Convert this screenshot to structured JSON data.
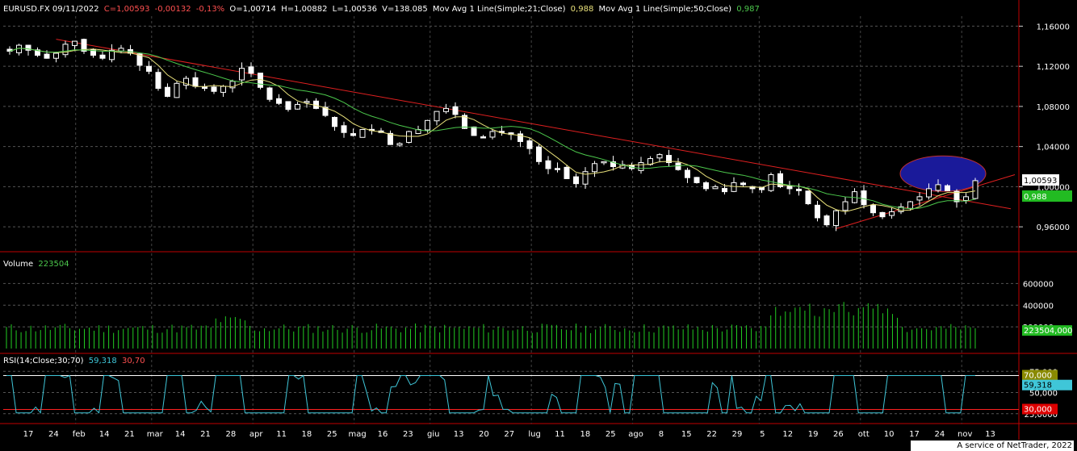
{
  "header": {
    "symbol_date": "EURUSD.FX 09/11/2022",
    "close": "C=1,00593",
    "change": "-0,00132",
    "change_pct": "-0,13%",
    "open": "O=1,00714",
    "high": "H=1,00882",
    "low": "L=1,00536",
    "volume": "V=138.085",
    "ma21_label": "Mov Avg 1 Line(Simple;21;Close)",
    "ma21_value": "0,988",
    "ma50_label": "Mov Avg 1 Line(Simple;50;Close)",
    "ma50_value": "0,987"
  },
  "volume_panel": {
    "title": "Volume",
    "value": "223504"
  },
  "rsi_panel": {
    "title": "RSI(14;Close;30;70)",
    "value": "59,318",
    "level_low": "30,70"
  },
  "footer": {
    "credit": "A service of NetTrader, 2022"
  },
  "colors": {
    "background": "#000000",
    "candle": "#ffffff",
    "ma21": "#e8e07a",
    "ma50": "#4cc84c",
    "trendline": "#e02020",
    "volume_bar": "#22cc22",
    "rsi_line": "#3fc6d8",
    "ellipse": "#1a1a9a"
  },
  "chart_data": [
    {
      "type": "candlestick",
      "symbol": "EURUSD.FX",
      "y_ticks": [
        "1,16000",
        "1,12000",
        "1,08000",
        "1,04000",
        "1,00000",
        "0,96000"
      ],
      "ylim": [
        0.94,
        1.17
      ],
      "x_ticks": [
        "17",
        "24",
        "feb",
        "14",
        "21",
        "mar",
        "14",
        "21",
        "28",
        "apr",
        "11",
        "18",
        "25",
        "mag",
        "16",
        "23",
        "giu",
        "13",
        "20",
        "27",
        "lug",
        "11",
        "18",
        "25",
        "ago",
        "8",
        "15",
        "22",
        "29",
        "5",
        "12",
        "19",
        "26",
        "ott",
        "10",
        "17",
        "24",
        "nov",
        "13"
      ],
      "close_series": [
        1.135,
        1.141,
        1.136,
        1.131,
        1.128,
        1.133,
        1.142,
        1.145,
        1.135,
        1.131,
        1.128,
        1.136,
        1.138,
        1.133,
        1.121,
        1.115,
        1.098,
        1.09,
        1.103,
        1.108,
        1.1,
        1.098,
        1.095,
        1.1,
        1.105,
        1.118,
        1.113,
        1.099,
        1.087,
        1.083,
        1.077,
        1.082,
        1.085,
        1.078,
        1.071,
        1.06,
        1.054,
        1.051,
        1.057,
        1.057,
        1.054,
        1.042,
        1.043,
        1.055,
        1.057,
        1.066,
        1.075,
        1.078,
        1.072,
        1.058,
        1.051,
        1.049,
        1.055,
        1.054,
        1.052,
        1.045,
        1.038,
        1.025,
        1.018,
        1.018,
        1.008,
        1.003,
        1.015,
        1.023,
        1.025,
        1.02,
        1.022,
        1.018,
        1.024,
        1.028,
        1.032,
        1.024,
        1.017,
        1.009,
        1.004,
        0.998,
        1.0,
        0.995,
        1.004,
        1.002,
        0.998,
        0.997,
        1.012,
        1.0,
        0.998,
        0.996,
        0.983,
        0.969,
        0.962,
        0.976,
        0.985,
        0.995,
        0.982,
        0.974,
        0.97,
        0.975,
        0.98,
        0.985,
        0.99,
        0.998,
        1.002,
        0.996,
        0.985,
        0.99,
        1.006
      ],
      "annotations": {
        "last_price": "1,00593",
        "ma21_value": "0,988",
        "ma50_value": "0,987"
      }
    },
    {
      "type": "bar",
      "title": "Volume",
      "y_ticks": [
        "600000",
        "400000",
        "200000"
      ],
      "last_value": "223504,000",
      "ylim": [
        0,
        700000
      ]
    },
    {
      "type": "line",
      "title": "RSI(14;Close;30;70)",
      "y_ticks": [
        "75,000",
        "50,000",
        "25,0000"
      ],
      "levels": [
        "70,000",
        "30,000"
      ],
      "last_value": "59,318",
      "ylim": [
        20,
        80
      ]
    }
  ]
}
